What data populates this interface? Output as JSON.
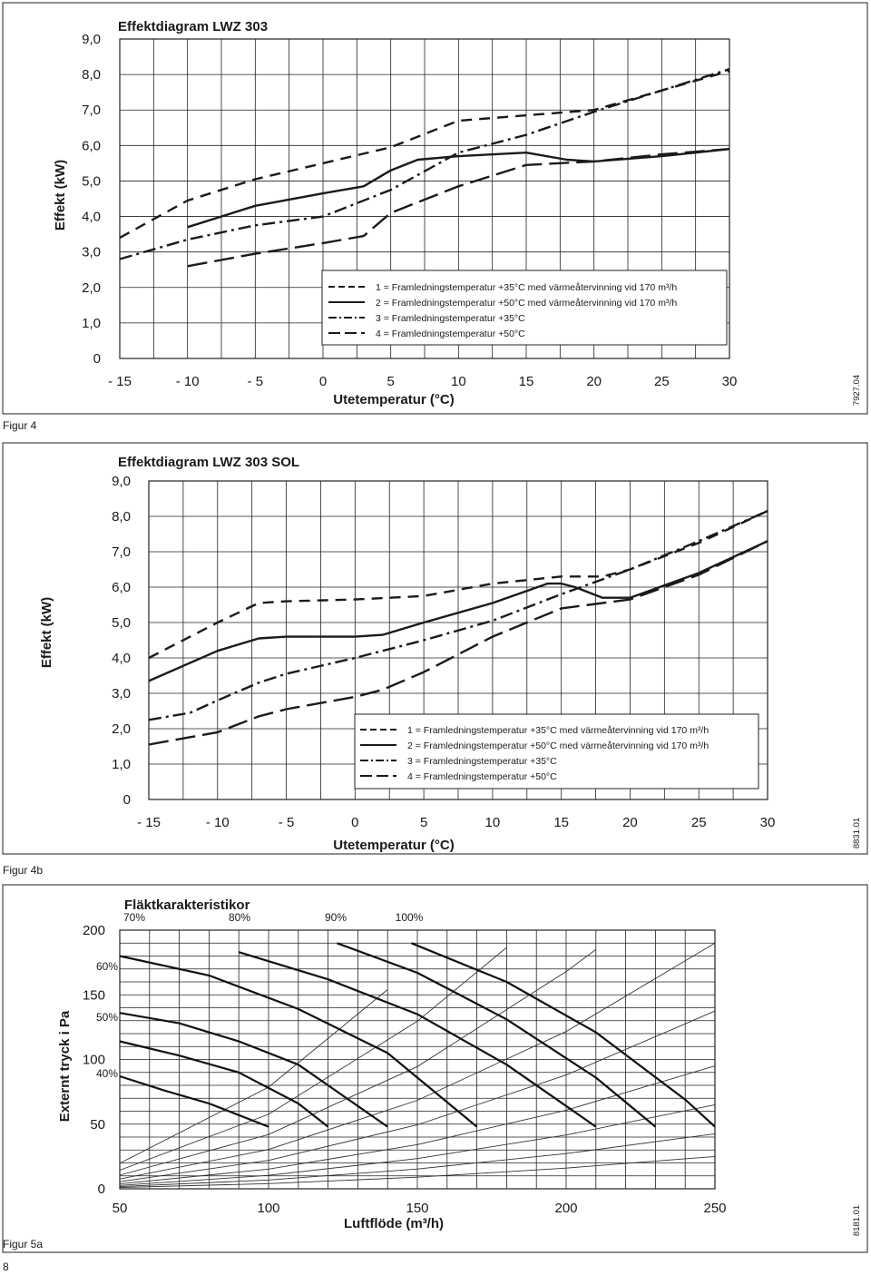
{
  "chart_data": [
    {
      "type": "line",
      "figure_label": "Figur 4",
      "title": "Effektdiagram LWZ 303",
      "xlabel": "Utetemperatur (°C)",
      "ylabel": "Effekt (kW)",
      "code": "7927.04",
      "xlim": [
        -15,
        30
      ],
      "ylim": [
        0,
        9
      ],
      "grid": true,
      "legend_placement": "bottom-right",
      "x_ticks": [
        "- 15",
        "- 10",
        "- 5",
        "0",
        "5",
        "10",
        "15",
        "20",
        "25",
        "30"
      ],
      "y_ticks": [
        "0",
        "1,0",
        "2,0",
        "3,0",
        "4,0",
        "5,0",
        "6,0",
        "7,0",
        "8,0",
        "9,0"
      ],
      "legend": [
        "1 = Framledningstemperatur +35°C med värmeåtervinning vid 170 m³/h",
        "2 = Framledningstemperatur +50°C med värmeåtervinning vid 170 m³/h",
        "3 = Framledningstemperatur +35°C",
        "4 = Framledningstemperatur +50°C"
      ],
      "series": [
        {
          "style": "dashed",
          "x": [
            -15,
            -10,
            -5,
            0,
            5,
            10,
            15,
            20,
            25,
            30
          ],
          "y": [
            3.4,
            4.45,
            5.05,
            5.5,
            5.95,
            6.7,
            6.85,
            7.0,
            7.55,
            8.1
          ]
        },
        {
          "style": "solid",
          "x": [
            -10,
            -5,
            0,
            3,
            5,
            7,
            10,
            15,
            18,
            20,
            25,
            30
          ],
          "y": [
            3.7,
            4.3,
            4.65,
            4.85,
            5.3,
            5.6,
            5.7,
            5.8,
            5.6,
            5.55,
            5.7,
            5.9
          ]
        },
        {
          "style": "dash-dot",
          "x": [
            -15,
            -10,
            -5,
            0,
            5,
            10,
            15,
            20,
            25,
            30
          ],
          "y": [
            2.8,
            3.35,
            3.75,
            4.0,
            4.75,
            5.8,
            6.3,
            6.95,
            7.55,
            8.15
          ]
        },
        {
          "style": "long-dash",
          "x": [
            -10,
            -5,
            0,
            3,
            5,
            10,
            15,
            20,
            25,
            30
          ],
          "y": [
            2.6,
            2.95,
            3.25,
            3.45,
            4.1,
            4.85,
            5.45,
            5.55,
            5.75,
            5.9
          ]
        }
      ]
    },
    {
      "type": "line",
      "figure_label": "Figur 4b",
      "title": "Effektdiagram LWZ 303 SOL",
      "xlabel": "Utetemperatur (°C)",
      "ylabel": "Effekt (kW)",
      "code": "8831.01",
      "xlim": [
        -15,
        30
      ],
      "ylim": [
        0,
        9
      ],
      "grid": true,
      "legend_placement": "bottom-right",
      "x_ticks": [
        "- 15",
        "- 10",
        "- 5",
        "0",
        "5",
        "10",
        "15",
        "20",
        "25",
        "30"
      ],
      "y_ticks": [
        "0",
        "1,0",
        "2,0",
        "3,0",
        "4,0",
        "5,0",
        "6,0",
        "7,0",
        "8,0",
        "9,0"
      ],
      "legend": [
        "1 = Framledningstemperatur +35°C med värmeåtervinning vid 170 m³/h",
        "2 = Framledningstemperatur +50°C med värmeåtervinning vid 170 m³/h",
        "3 = Framledningstemperatur +35°C",
        "4 = Framledningstemperatur +50°C"
      ],
      "series": [
        {
          "style": "dashed",
          "x": [
            -15,
            -10,
            -7,
            -5,
            0,
            5,
            10,
            15,
            18,
            20,
            25,
            30
          ],
          "y": [
            4.0,
            5.0,
            5.55,
            5.6,
            5.65,
            5.75,
            6.1,
            6.3,
            6.3,
            6.5,
            7.25,
            8.15
          ]
        },
        {
          "style": "solid",
          "x": [
            -15,
            -10,
            -7,
            -5,
            0,
            2,
            5,
            10,
            14,
            15,
            16,
            18,
            20,
            25,
            30
          ],
          "y": [
            3.35,
            4.2,
            4.55,
            4.6,
            4.6,
            4.65,
            5.0,
            5.55,
            6.1,
            6.1,
            6.0,
            5.7,
            5.7,
            6.4,
            7.3
          ]
        },
        {
          "style": "dash-dot",
          "x": [
            -15,
            -12,
            -10,
            -7,
            -5,
            0,
            5,
            10,
            15,
            20,
            25,
            30
          ],
          "y": [
            2.25,
            2.45,
            2.8,
            3.3,
            3.55,
            4.0,
            4.5,
            5.05,
            5.8,
            6.5,
            7.3,
            8.15
          ]
        },
        {
          "style": "long-dash",
          "x": [
            -15,
            -10,
            -7,
            -5,
            0,
            2,
            5,
            10,
            15,
            17,
            20,
            25,
            30
          ],
          "y": [
            1.55,
            1.9,
            2.35,
            2.55,
            2.9,
            3.1,
            3.6,
            4.6,
            5.4,
            5.5,
            5.65,
            6.35,
            7.3
          ]
        }
      ]
    },
    {
      "type": "line",
      "figure_label": "Figur 5a",
      "title": "Fläktkarakteristikor",
      "xlabel": "Luftflöde (m³/h)",
      "ylabel": "Externt tryck i Pa",
      "code": "8181.01",
      "xlim": [
        50,
        250
      ],
      "ylim": [
        0,
        200
      ],
      "grid": true,
      "x_ticks": [
        "50",
        "100",
        "150",
        "200",
        "250"
      ],
      "y_ticks": [
        "0",
        "50",
        "100",
        "150",
        "200"
      ],
      "fan_curve_labels": [
        "70%",
        "80%",
        "90%",
        "100%",
        "60%",
        "50%",
        "40%"
      ],
      "fan_curves": [
        {
          "label": "40%",
          "x": [
            50,
            65,
            80,
            100
          ],
          "y": [
            87,
            76,
            66,
            48
          ]
        },
        {
          "label": "50%",
          "x": [
            50,
            70,
            90,
            110,
            120
          ],
          "y": [
            114,
            103,
            90,
            66,
            48
          ]
        },
        {
          "label": "60%",
          "x": [
            50,
            70,
            90,
            110,
            140
          ],
          "y": [
            136,
            128,
            114,
            96,
            48
          ]
        },
        {
          "label": "70%",
          "x": [
            50,
            80,
            110,
            140,
            170
          ],
          "y": [
            180,
            165,
            139,
            105,
            48
          ]
        },
        {
          "label": "80%",
          "x": [
            90,
            120,
            150,
            180,
            210
          ],
          "y": [
            183,
            162,
            135,
            96,
            48
          ]
        },
        {
          "label": "90%",
          "x": [
            123,
            150,
            180,
            210,
            230
          ],
          "y": [
            190,
            167,
            131,
            86,
            48
          ]
        },
        {
          "label": "100%",
          "x": [
            148,
            180,
            210,
            240,
            250
          ],
          "y": [
            190,
            160,
            121,
            69,
            48
          ]
        }
      ],
      "system_curves": [
        {
          "x": [
            50,
            100,
            140
          ],
          "y": [
            19.7,
            78.6,
            154
          ]
        },
        {
          "x": [
            50,
            100,
            150,
            180
          ],
          "y": [
            14.4,
            57.6,
            129.6,
            186.6
          ]
        },
        {
          "x": [
            50,
            100,
            150,
            200,
            210
          ],
          "y": [
            10.5,
            42,
            94.5,
            168,
            185
          ]
        },
        {
          "x": [
            50,
            100,
            150,
            200,
            250
          ],
          "y": [
            7.6,
            30.4,
            68.4,
            121.6,
            190
          ]
        },
        {
          "x": [
            50,
            100,
            150,
            200,
            250
          ],
          "y": [
            5.5,
            22,
            49.5,
            88,
            137.5
          ]
        },
        {
          "x": [
            50,
            100,
            150,
            200,
            250
          ],
          "y": [
            3.8,
            15.2,
            34.2,
            60.8,
            95
          ]
        },
        {
          "x": [
            50,
            100,
            150,
            200,
            250
          ],
          "y": [
            2.6,
            10.4,
            23.4,
            41.6,
            65
          ]
        },
        {
          "x": [
            50,
            100,
            150,
            200,
            250
          ],
          "y": [
            1.7,
            6.8,
            15.3,
            27.2,
            42.5
          ]
        },
        {
          "x": [
            50,
            100,
            150,
            200,
            250
          ],
          "y": [
            1.0,
            4.0,
            9.0,
            16,
            25
          ]
        }
      ]
    }
  ],
  "page_number": "8"
}
